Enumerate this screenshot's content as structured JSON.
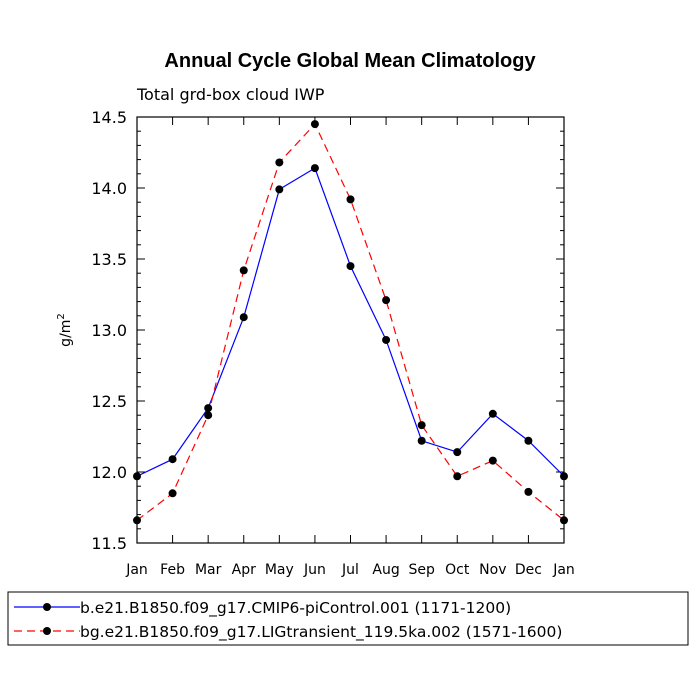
{
  "chart_data": {
    "type": "line",
    "title": "Annual Cycle Global Mean Climatology",
    "subtitle": "Total grd-box cloud IWP",
    "ylabel": "g/m",
    "ylabel_superscript": "2",
    "xlabel": "",
    "categories": [
      "Jan",
      "Feb",
      "Mar",
      "Apr",
      "May",
      "Jun",
      "Jul",
      "Aug",
      "Sep",
      "Oct",
      "Nov",
      "Dec",
      "Jan"
    ],
    "ylim": [
      11.5,
      14.5
    ],
    "yticks": [
      "11.5",
      "12.0",
      "12.5",
      "13.0",
      "13.5",
      "14.0",
      "14.5"
    ],
    "grid": false,
    "legend_placement": "bottom",
    "series": [
      {
        "name": "b.e21.B1850.f09_g17.CMIP6-piControl.001 (1171-1200)",
        "color": "#0000ff",
        "dash": "solid",
        "values": [
          11.97,
          12.09,
          12.45,
          13.09,
          13.99,
          14.14,
          13.45,
          12.93,
          12.22,
          12.14,
          12.41,
          12.22,
          11.97
        ]
      },
      {
        "name": "bg.e21.B1850.f09_g17.LIGtransient_119.5ka.002 (1571-1600)",
        "color": "#ff0000",
        "dash": "dashed",
        "values": [
          11.66,
          11.85,
          12.4,
          13.42,
          14.18,
          14.45,
          13.92,
          13.21,
          12.33,
          11.97,
          12.08,
          11.86,
          11.66
        ]
      }
    ]
  }
}
